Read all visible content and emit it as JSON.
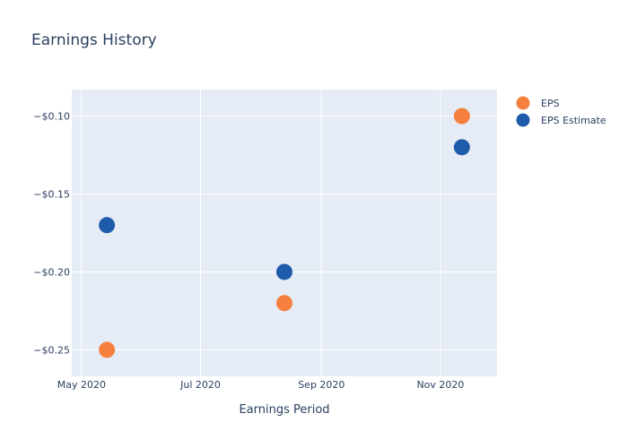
{
  "chart_data": {
    "type": "scatter",
    "title": "Earnings History",
    "xlabel": "Earnings Period",
    "ylabel": "",
    "x_axis": {
      "type": "date",
      "range": [
        "2020-04-26",
        "2020-11-30"
      ],
      "ticks": [
        {
          "value": "2020-05-01",
          "label": "May 2020"
        },
        {
          "value": "2020-07-01",
          "label": "Jul 2020"
        },
        {
          "value": "2020-09-01",
          "label": "Sep 2020"
        },
        {
          "value": "2020-11-01",
          "label": "Nov 2020"
        }
      ]
    },
    "y_axis": {
      "range": [
        -0.267,
        -0.083
      ],
      "ticks": [
        {
          "value": -0.1,
          "label": "−$0.10"
        },
        {
          "value": -0.15,
          "label": "−$0.15"
        },
        {
          "value": -0.2,
          "label": "−$0.20"
        },
        {
          "value": -0.25,
          "label": "−$0.25"
        }
      ]
    },
    "grid": true,
    "legend_position": "top-right",
    "series": [
      {
        "name": "EPS",
        "color": "#f5803e",
        "points": [
          {
            "x": "2020-05-14",
            "y": -0.25
          },
          {
            "x": "2020-08-13",
            "y": -0.22
          },
          {
            "x": "2020-11-12",
            "y": -0.1
          }
        ]
      },
      {
        "name": "EPS Estimate",
        "color": "#1f5bab",
        "points": [
          {
            "x": "2020-05-14",
            "y": -0.17
          },
          {
            "x": "2020-08-13",
            "y": -0.2
          },
          {
            "x": "2020-11-12",
            "y": -0.12
          }
        ]
      }
    ]
  }
}
